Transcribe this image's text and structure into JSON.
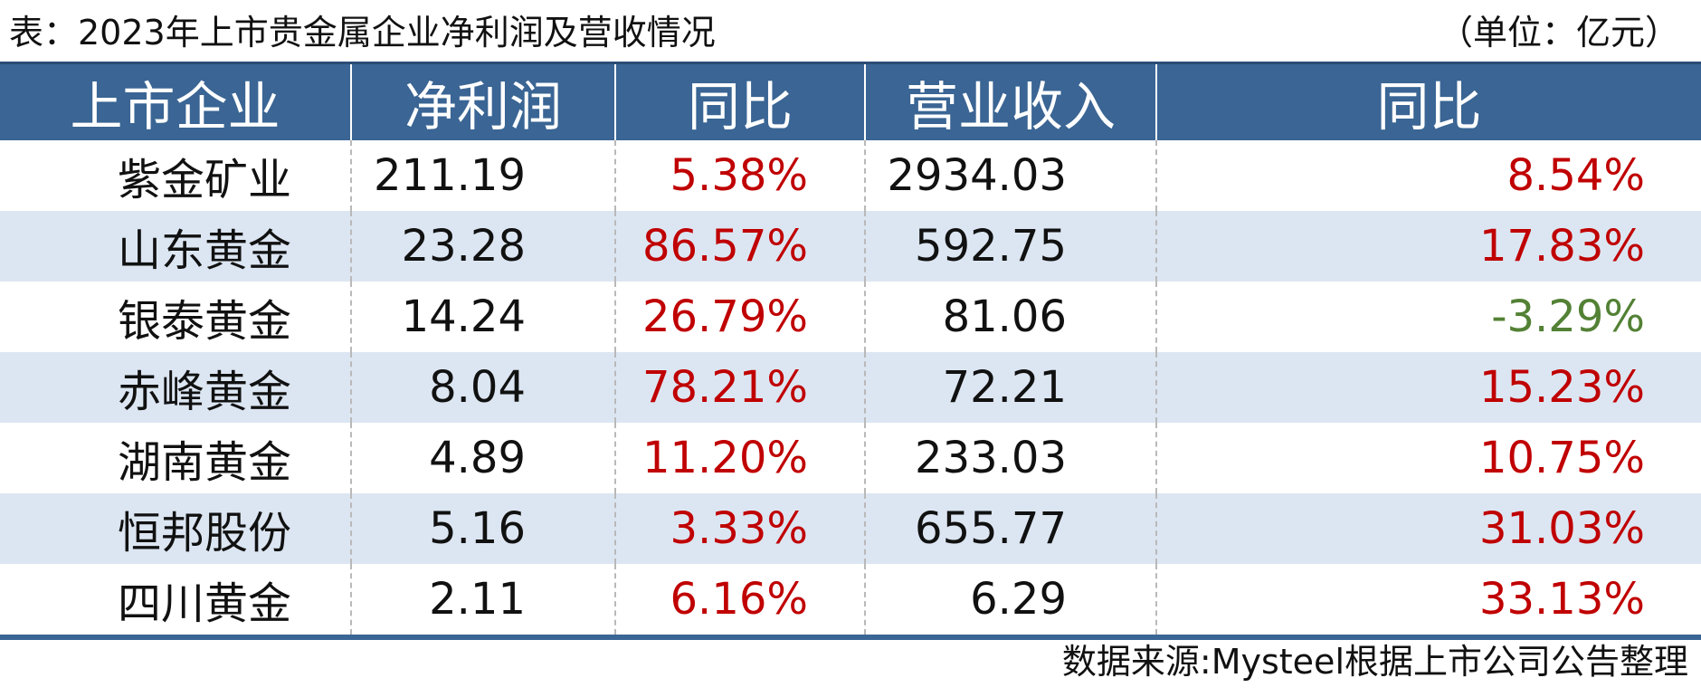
{
  "title": "表：2023年上市贵金属企业净利润及营收情况",
  "unit": "（单位：亿元）",
  "table": {
    "headers": [
      "上市企业",
      "净利润",
      "同比",
      "营业收入",
      "同比"
    ],
    "rows": [
      {
        "company": "紫金矿业",
        "net_profit": "211.19",
        "profit_yoy": "5.38%",
        "revenue": "2934.03",
        "revenue_yoy": "8.54%"
      },
      {
        "company": "山东黄金",
        "net_profit": "23.28",
        "profit_yoy": "86.57%",
        "revenue": "592.75",
        "revenue_yoy": "17.83%"
      },
      {
        "company": "银泰黄金",
        "net_profit": "14.24",
        "profit_yoy": "26.79%",
        "revenue": "81.06",
        "revenue_yoy": "-3.29%"
      },
      {
        "company": "赤峰黄金",
        "net_profit": "8.04",
        "profit_yoy": "78.21%",
        "revenue": "72.21",
        "revenue_yoy": "15.23%"
      },
      {
        "company": "湖南黄金",
        "net_profit": "4.89",
        "profit_yoy": "11.20%",
        "revenue": "233.03",
        "revenue_yoy": "10.75%"
      },
      {
        "company": "恒邦股份",
        "net_profit": "5.16",
        "profit_yoy": "3.33%",
        "revenue": "655.77",
        "revenue_yoy": "31.03%"
      },
      {
        "company": "四川黄金",
        "net_profit": "2.11",
        "profit_yoy": "6.16%",
        "revenue": "6.29",
        "revenue_yoy": "33.13%"
      }
    ]
  },
  "source": "数据来源:Mysteel根据上市公司公告整理",
  "colors": {
    "header_bg": "#3a6594",
    "alt_row_bg": "#dce6f2",
    "positive": "#c00000",
    "negative": "#538135"
  }
}
